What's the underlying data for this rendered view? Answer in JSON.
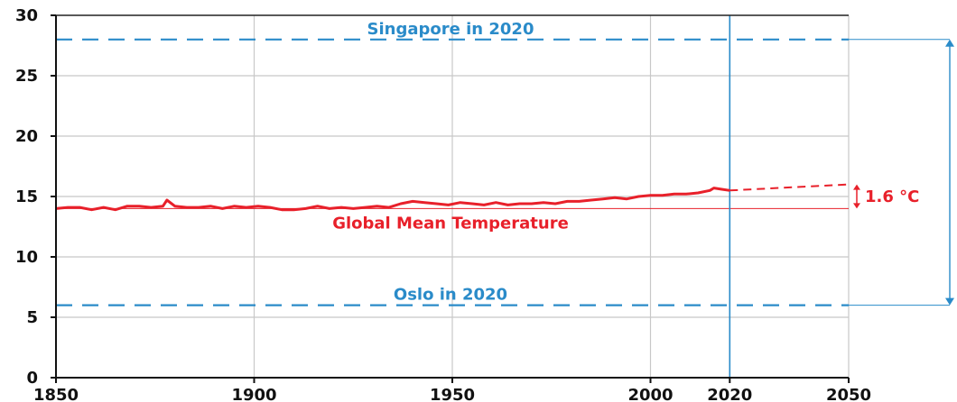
{
  "chart_data": {
    "type": "line",
    "title": "",
    "xlabel": "",
    "ylabel": "",
    "xlim": [
      1850,
      2050
    ],
    "ylim": [
      0,
      30
    ],
    "xticks": [
      1850,
      1900,
      1950,
      2000,
      2020,
      2050
    ],
    "yticks": [
      0,
      5,
      10,
      15,
      20,
      25,
      30
    ],
    "grid": true,
    "series": [
      {
        "name": "Global Mean Temperature",
        "color": "#e8202a",
        "x": [
          1850,
          1853,
          1856,
          1859,
          1862,
          1865,
          1868,
          1871,
          1874,
          1877,
          1878,
          1880,
          1883,
          1886,
          1889,
          1892,
          1895,
          1898,
          1901,
          1904,
          1907,
          1910,
          1913,
          1916,
          1919,
          1922,
          1925,
          1928,
          1931,
          1934,
          1937,
          1940,
          1943,
          1946,
          1949,
          1952,
          1955,
          1958,
          1961,
          1964,
          1967,
          1970,
          1973,
          1976,
          1979,
          1982,
          1985,
          1988,
          1991,
          1994,
          1997,
          2000,
          2003,
          2006,
          2009,
          2012,
          2015,
          2016,
          2018,
          2020
        ],
        "values": [
          14.0,
          14.1,
          14.1,
          13.9,
          14.1,
          13.9,
          14.2,
          14.2,
          14.1,
          14.2,
          14.7,
          14.2,
          14.1,
          14.1,
          14.2,
          14.0,
          14.2,
          14.1,
          14.2,
          14.1,
          13.9,
          13.9,
          14.0,
          14.2,
          14.0,
          14.1,
          14.0,
          14.1,
          14.2,
          14.1,
          14.4,
          14.6,
          14.5,
          14.4,
          14.3,
          14.5,
          14.4,
          14.3,
          14.5,
          14.3,
          14.4,
          14.4,
          14.5,
          14.4,
          14.6,
          14.6,
          14.7,
          14.8,
          14.9,
          14.8,
          15.0,
          15.1,
          15.1,
          15.2,
          15.2,
          15.3,
          15.5,
          15.7,
          15.6,
          15.5
        ]
      }
    ],
    "projection": {
      "x": [
        2020,
        2050
      ],
      "values": [
        15.5,
        16.0
      ]
    },
    "reference_lines": [
      {
        "y": 28,
        "label": "Singapore in 2020"
      },
      {
        "y": 6,
        "label": "Oslo in 2020"
      },
      {
        "y": 14,
        "label": "Global Mean Temperature"
      }
    ],
    "vertical_marker": {
      "x": 2020
    },
    "annotation": {
      "label": "1.6 °C",
      "from": 14,
      "to": 16
    },
    "colors": {
      "reference": "#2a8bc9",
      "series": "#e8202a",
      "grid": "#c8c8c8"
    }
  }
}
